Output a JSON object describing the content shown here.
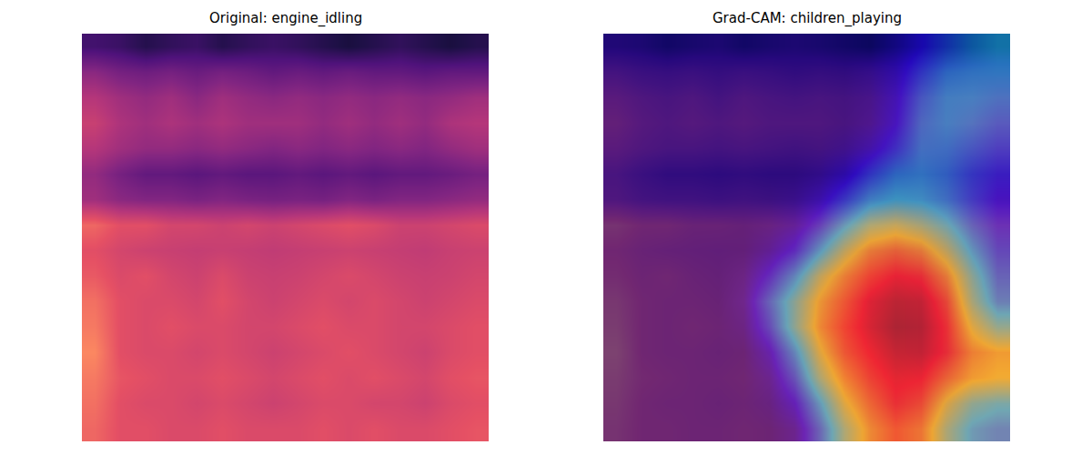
{
  "chart_data": [
    {
      "type": "heatmap",
      "title": "Original: engine_idling",
      "color": "magma",
      "zlim": [
        0,
        1
      ],
      "tick_labels": false,
      "cells": [
        [
          0.22,
          0.2,
          0.15,
          0.18,
          0.2,
          0.15,
          0.18,
          0.2,
          0.18,
          0.15,
          0.12,
          0.15,
          0.18,
          0.15,
          0.12,
          0.15
        ],
        [
          0.4,
          0.35,
          0.33,
          0.35,
          0.32,
          0.35,
          0.33,
          0.3,
          0.32,
          0.3,
          0.32,
          0.3,
          0.3,
          0.28,
          0.3,
          0.3
        ],
        [
          0.5,
          0.45,
          0.42,
          0.45,
          0.4,
          0.45,
          0.42,
          0.4,
          0.42,
          0.4,
          0.42,
          0.4,
          0.42,
          0.4,
          0.42,
          0.45
        ],
        [
          0.55,
          0.48,
          0.45,
          0.48,
          0.45,
          0.48,
          0.45,
          0.45,
          0.45,
          0.42,
          0.45,
          0.42,
          0.45,
          0.42,
          0.48,
          0.5
        ],
        [
          0.5,
          0.45,
          0.42,
          0.42,
          0.4,
          0.42,
          0.4,
          0.38,
          0.4,
          0.38,
          0.4,
          0.38,
          0.4,
          0.38,
          0.42,
          0.45
        ],
        [
          0.42,
          0.35,
          0.3,
          0.3,
          0.28,
          0.3,
          0.28,
          0.28,
          0.3,
          0.28,
          0.3,
          0.28,
          0.3,
          0.3,
          0.32,
          0.35
        ],
        [
          0.45,
          0.4,
          0.38,
          0.38,
          0.36,
          0.38,
          0.36,
          0.35,
          0.36,
          0.35,
          0.38,
          0.36,
          0.38,
          0.38,
          0.4,
          0.42
        ],
        [
          0.68,
          0.62,
          0.62,
          0.58,
          0.58,
          0.56,
          0.58,
          0.56,
          0.58,
          0.6,
          0.62,
          0.6,
          0.56,
          0.56,
          0.58,
          0.6
        ],
        [
          0.62,
          0.58,
          0.56,
          0.55,
          0.54,
          0.55,
          0.54,
          0.53,
          0.54,
          0.55,
          0.56,
          0.55,
          0.54,
          0.53,
          0.55,
          0.56
        ],
        [
          0.65,
          0.6,
          0.62,
          0.58,
          0.56,
          0.6,
          0.56,
          0.55,
          0.56,
          0.58,
          0.6,
          0.58,
          0.56,
          0.55,
          0.56,
          0.58
        ],
        [
          0.7,
          0.62,
          0.6,
          0.6,
          0.58,
          0.62,
          0.58,
          0.56,
          0.58,
          0.6,
          0.58,
          0.6,
          0.58,
          0.56,
          0.58,
          0.6
        ],
        [
          0.72,
          0.62,
          0.6,
          0.62,
          0.6,
          0.6,
          0.58,
          0.58,
          0.6,
          0.62,
          0.6,
          0.6,
          0.58,
          0.58,
          0.6,
          0.62
        ],
        [
          0.75,
          0.62,
          0.6,
          0.6,
          0.58,
          0.6,
          0.58,
          0.56,
          0.58,
          0.6,
          0.62,
          0.6,
          0.58,
          0.56,
          0.6,
          0.62
        ],
        [
          0.72,
          0.64,
          0.62,
          0.6,
          0.6,
          0.62,
          0.6,
          0.58,
          0.6,
          0.62,
          0.6,
          0.62,
          0.6,
          0.58,
          0.62,
          0.64
        ],
        [
          0.7,
          0.62,
          0.6,
          0.6,
          0.58,
          0.6,
          0.58,
          0.56,
          0.58,
          0.6,
          0.6,
          0.58,
          0.58,
          0.56,
          0.6,
          0.62
        ],
        [
          0.68,
          0.62,
          0.62,
          0.6,
          0.6,
          0.62,
          0.6,
          0.6,
          0.6,
          0.62,
          0.6,
          0.62,
          0.6,
          0.6,
          0.62,
          0.64
        ]
      ]
    },
    {
      "type": "heatmap_overlay",
      "title": "Grad-CAM: children_playing",
      "color": "jet",
      "zlim": [
        0,
        1
      ],
      "tick_labels": false,
      "cells": [
        [
          0,
          0,
          0,
          0,
          0,
          0,
          0,
          0,
          0,
          0,
          0,
          0.05,
          0.12,
          0.2,
          0.28,
          0.33
        ],
        [
          0,
          0,
          0,
          0,
          0,
          0,
          0,
          0,
          0,
          0,
          0.02,
          0.08,
          0.2,
          0.3,
          0.32,
          0.33
        ],
        [
          0,
          0,
          0,
          0,
          0,
          0,
          0,
          0,
          0,
          0,
          0.02,
          0.1,
          0.25,
          0.33,
          0.33,
          0.3
        ],
        [
          0,
          0,
          0,
          0,
          0,
          0,
          0,
          0,
          0,
          0,
          0.03,
          0.12,
          0.28,
          0.33,
          0.3,
          0.25
        ],
        [
          0,
          0,
          0,
          0,
          0,
          0,
          0,
          0,
          0,
          0.02,
          0.08,
          0.18,
          0.3,
          0.3,
          0.25,
          0.2
        ],
        [
          0,
          0,
          0,
          0,
          0,
          0,
          0,
          0,
          0.02,
          0.08,
          0.2,
          0.3,
          0.32,
          0.28,
          0.2,
          0.15
        ],
        [
          0,
          0,
          0,
          0,
          0,
          0,
          0,
          0.02,
          0.08,
          0.2,
          0.33,
          0.38,
          0.36,
          0.3,
          0.2,
          0.12
        ],
        [
          0,
          0,
          0,
          0,
          0,
          0,
          0.02,
          0.06,
          0.18,
          0.35,
          0.5,
          0.55,
          0.5,
          0.4,
          0.25,
          0.15
        ],
        [
          0,
          0,
          0,
          0,
          0,
          0,
          0.05,
          0.15,
          0.35,
          0.55,
          0.7,
          0.75,
          0.7,
          0.55,
          0.35,
          0.2
        ],
        [
          0,
          0,
          0,
          0,
          0,
          0.03,
          0.15,
          0.32,
          0.55,
          0.7,
          0.82,
          0.88,
          0.85,
          0.7,
          0.45,
          0.25
        ],
        [
          0,
          0,
          0,
          0,
          0,
          0.05,
          0.25,
          0.45,
          0.65,
          0.78,
          0.9,
          0.97,
          0.95,
          0.8,
          0.5,
          0.3
        ],
        [
          0,
          0,
          0,
          0,
          0,
          0.03,
          0.2,
          0.45,
          0.68,
          0.82,
          0.92,
          1.0,
          0.98,
          0.85,
          0.6,
          0.45
        ],
        [
          0,
          0,
          0,
          0,
          0,
          0,
          0.1,
          0.32,
          0.6,
          0.78,
          0.88,
          0.95,
          0.95,
          0.85,
          0.7,
          0.65
        ],
        [
          0,
          0,
          0,
          0,
          0,
          0,
          0.05,
          0.22,
          0.5,
          0.7,
          0.82,
          0.9,
          0.88,
          0.75,
          0.65,
          0.62
        ],
        [
          0,
          0,
          0,
          0,
          0,
          0,
          0.02,
          0.12,
          0.35,
          0.6,
          0.75,
          0.85,
          0.8,
          0.6,
          0.45,
          0.4
        ],
        [
          0,
          0,
          0,
          0,
          0,
          0,
          0,
          0.05,
          0.25,
          0.5,
          0.68,
          0.78,
          0.72,
          0.5,
          0.35,
          0.3
        ]
      ]
    }
  ]
}
